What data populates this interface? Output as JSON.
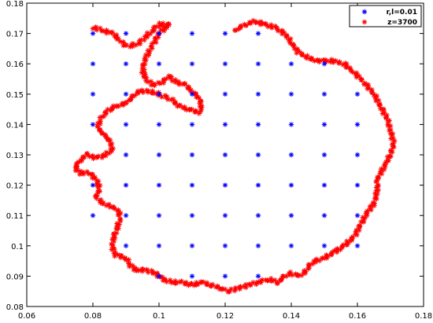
{
  "chart_data": {
    "type": "scatter",
    "title": "",
    "xlabel": "",
    "ylabel": "",
    "xlim": [
      0.06,
      0.18
    ],
    "ylim": [
      0.08,
      0.18
    ],
    "x_ticks": [
      "0.06",
      "0.08",
      "0.1",
      "0.12",
      "0.14",
      "0.16",
      "0.18"
    ],
    "y_ticks": [
      "0.08",
      "0.09",
      "0.1",
      "0.11",
      "0.12",
      "0.13",
      "0.14",
      "0.15",
      "0.16",
      "0.17",
      "0.18"
    ],
    "grid": false,
    "legend_position": "top-right",
    "series": [
      {
        "name": "r,l=0.01",
        "color": "#0000ff",
        "marker": "asterisk",
        "x_values": [
          0.08,
          0.09,
          0.1,
          0.11,
          0.12,
          0.13,
          0.14,
          0.15,
          0.16
        ],
        "y_values": [
          0.09,
          0.1,
          0.11,
          0.12,
          0.13,
          0.14,
          0.15,
          0.16,
          0.17
        ],
        "points": [
          [
            0.1,
            0.09
          ],
          [
            0.11,
            0.09
          ],
          [
            0.12,
            0.09
          ],
          [
            0.13,
            0.09
          ],
          [
            0.09,
            0.1
          ],
          [
            0.1,
            0.1
          ],
          [
            0.11,
            0.1
          ],
          [
            0.12,
            0.1
          ],
          [
            0.13,
            0.1
          ],
          [
            0.14,
            0.1
          ],
          [
            0.15,
            0.1
          ],
          [
            0.16,
            0.1
          ],
          [
            0.08,
            0.11
          ],
          [
            0.09,
            0.11
          ],
          [
            0.1,
            0.11
          ],
          [
            0.11,
            0.11
          ],
          [
            0.12,
            0.11
          ],
          [
            0.13,
            0.11
          ],
          [
            0.14,
            0.11
          ],
          [
            0.15,
            0.11
          ],
          [
            0.16,
            0.11
          ],
          [
            0.08,
            0.12
          ],
          [
            0.09,
            0.12
          ],
          [
            0.1,
            0.12
          ],
          [
            0.11,
            0.12
          ],
          [
            0.12,
            0.12
          ],
          [
            0.13,
            0.12
          ],
          [
            0.14,
            0.12
          ],
          [
            0.15,
            0.12
          ],
          [
            0.16,
            0.12
          ],
          [
            0.09,
            0.13
          ],
          [
            0.1,
            0.13
          ],
          [
            0.11,
            0.13
          ],
          [
            0.12,
            0.13
          ],
          [
            0.13,
            0.13
          ],
          [
            0.14,
            0.13
          ],
          [
            0.15,
            0.13
          ],
          [
            0.16,
            0.13
          ],
          [
            0.08,
            0.14
          ],
          [
            0.09,
            0.14
          ],
          [
            0.1,
            0.14
          ],
          [
            0.11,
            0.14
          ],
          [
            0.12,
            0.14
          ],
          [
            0.13,
            0.14
          ],
          [
            0.14,
            0.14
          ],
          [
            0.15,
            0.14
          ],
          [
            0.16,
            0.14
          ],
          [
            0.08,
            0.15
          ],
          [
            0.09,
            0.15
          ],
          [
            0.1,
            0.15
          ],
          [
            0.11,
            0.15
          ],
          [
            0.12,
            0.15
          ],
          [
            0.13,
            0.15
          ],
          [
            0.14,
            0.15
          ],
          [
            0.15,
            0.15
          ],
          [
            0.16,
            0.15
          ],
          [
            0.08,
            0.16
          ],
          [
            0.09,
            0.16
          ],
          [
            0.1,
            0.16
          ],
          [
            0.11,
            0.16
          ],
          [
            0.12,
            0.16
          ],
          [
            0.13,
            0.16
          ],
          [
            0.14,
            0.16
          ],
          [
            0.15,
            0.16
          ],
          [
            0.08,
            0.17
          ],
          [
            0.09,
            0.17
          ],
          [
            0.1,
            0.17
          ],
          [
            0.11,
            0.17
          ],
          [
            0.12,
            0.17
          ],
          [
            0.13,
            0.17
          ]
        ]
      },
      {
        "name": "z=3700",
        "color": "#ff0000",
        "marker": "asterisk",
        "points": [
          [
            0.08,
            0.172
          ],
          [
            0.083,
            0.171
          ],
          [
            0.086,
            0.17
          ],
          [
            0.088,
            0.168
          ],
          [
            0.09,
            0.166
          ],
          [
            0.092,
            0.166
          ],
          [
            0.094,
            0.167
          ],
          [
            0.096,
            0.169
          ],
          [
            0.098,
            0.171
          ],
          [
            0.1,
            0.173
          ],
          [
            0.103,
            0.173
          ],
          [
            0.1,
            0.17
          ],
          [
            0.098,
            0.166
          ],
          [
            0.096,
            0.162
          ],
          [
            0.095,
            0.158
          ],
          [
            0.096,
            0.155
          ],
          [
            0.098,
            0.153
          ],
          [
            0.101,
            0.154
          ],
          [
            0.103,
            0.156
          ],
          [
            0.105,
            0.154
          ],
          [
            0.108,
            0.153
          ],
          [
            0.11,
            0.151
          ],
          [
            0.112,
            0.149
          ],
          [
            0.113,
            0.146
          ],
          [
            0.112,
            0.144
          ],
          [
            0.109,
            0.145
          ],
          [
            0.106,
            0.146
          ],
          [
            0.104,
            0.148
          ],
          [
            0.102,
            0.149
          ],
          [
            0.1,
            0.15
          ],
          [
            0.097,
            0.151
          ],
          [
            0.094,
            0.151
          ],
          [
            0.092,
            0.149
          ],
          [
            0.09,
            0.147
          ],
          [
            0.087,
            0.146
          ],
          [
            0.085,
            0.145
          ],
          [
            0.083,
            0.143
          ],
          [
            0.082,
            0.141
          ],
          [
            0.0815,
            0.139
          ],
          [
            0.083,
            0.137
          ],
          [
            0.085,
            0.135
          ],
          [
            0.086,
            0.132
          ],
          [
            0.084,
            0.13
          ],
          [
            0.081,
            0.129
          ],
          [
            0.078,
            0.13
          ],
          [
            0.076,
            0.128
          ],
          [
            0.0745,
            0.126
          ],
          [
            0.076,
            0.124
          ],
          [
            0.079,
            0.124
          ],
          [
            0.081,
            0.122
          ],
          [
            0.082,
            0.119
          ],
          [
            0.081,
            0.116
          ],
          [
            0.083,
            0.114
          ],
          [
            0.086,
            0.113
          ],
          [
            0.088,
            0.111
          ],
          [
            0.088,
            0.108
          ],
          [
            0.087,
            0.105
          ],
          [
            0.086,
            0.102
          ],
          [
            0.086,
            0.099
          ],
          [
            0.087,
            0.097
          ],
          [
            0.09,
            0.096
          ],
          [
            0.091,
            0.094
          ],
          [
            0.093,
            0.092
          ],
          [
            0.096,
            0.092
          ],
          [
            0.099,
            0.091
          ],
          [
            0.101,
            0.089
          ],
          [
            0.104,
            0.088
          ],
          [
            0.107,
            0.088
          ],
          [
            0.11,
            0.087
          ],
          [
            0.113,
            0.088
          ],
          [
            0.116,
            0.087
          ],
          [
            0.119,
            0.086
          ],
          [
            0.121,
            0.085
          ],
          [
            0.124,
            0.086
          ],
          [
            0.127,
            0.087
          ],
          [
            0.13,
            0.088
          ],
          [
            0.133,
            0.089
          ],
          [
            0.136,
            0.088
          ],
          [
            0.138,
            0.09
          ],
          [
            0.14,
            0.091
          ],
          [
            0.142,
            0.09
          ],
          [
            0.144,
            0.091
          ],
          [
            0.145,
            0.093
          ],
          [
            0.147,
            0.095
          ],
          [
            0.15,
            0.096
          ],
          [
            0.153,
            0.098
          ],
          [
            0.156,
            0.1
          ],
          [
            0.159,
            0.103
          ],
          [
            0.161,
            0.107
          ],
          [
            0.163,
            0.111
          ],
          [
            0.165,
            0.114
          ],
          [
            0.166,
            0.118
          ],
          [
            0.166,
            0.122
          ],
          [
            0.168,
            0.126
          ],
          [
            0.17,
            0.13
          ],
          [
            0.171,
            0.134
          ],
          [
            0.17,
            0.138
          ],
          [
            0.169,
            0.142
          ],
          [
            0.167,
            0.146
          ],
          [
            0.165,
            0.15
          ],
          [
            0.162,
            0.154
          ],
          [
            0.159,
            0.157
          ],
          [
            0.156,
            0.16
          ],
          [
            0.152,
            0.161
          ],
          [
            0.148,
            0.161
          ],
          [
            0.145,
            0.162
          ],
          [
            0.142,
            0.164
          ],
          [
            0.14,
            0.167
          ],
          [
            0.138,
            0.17
          ],
          [
            0.135,
            0.172
          ],
          [
            0.132,
            0.173
          ],
          [
            0.129,
            0.174
          ],
          [
            0.126,
            0.173
          ],
          [
            0.123,
            0.171
          ]
        ]
      }
    ]
  }
}
